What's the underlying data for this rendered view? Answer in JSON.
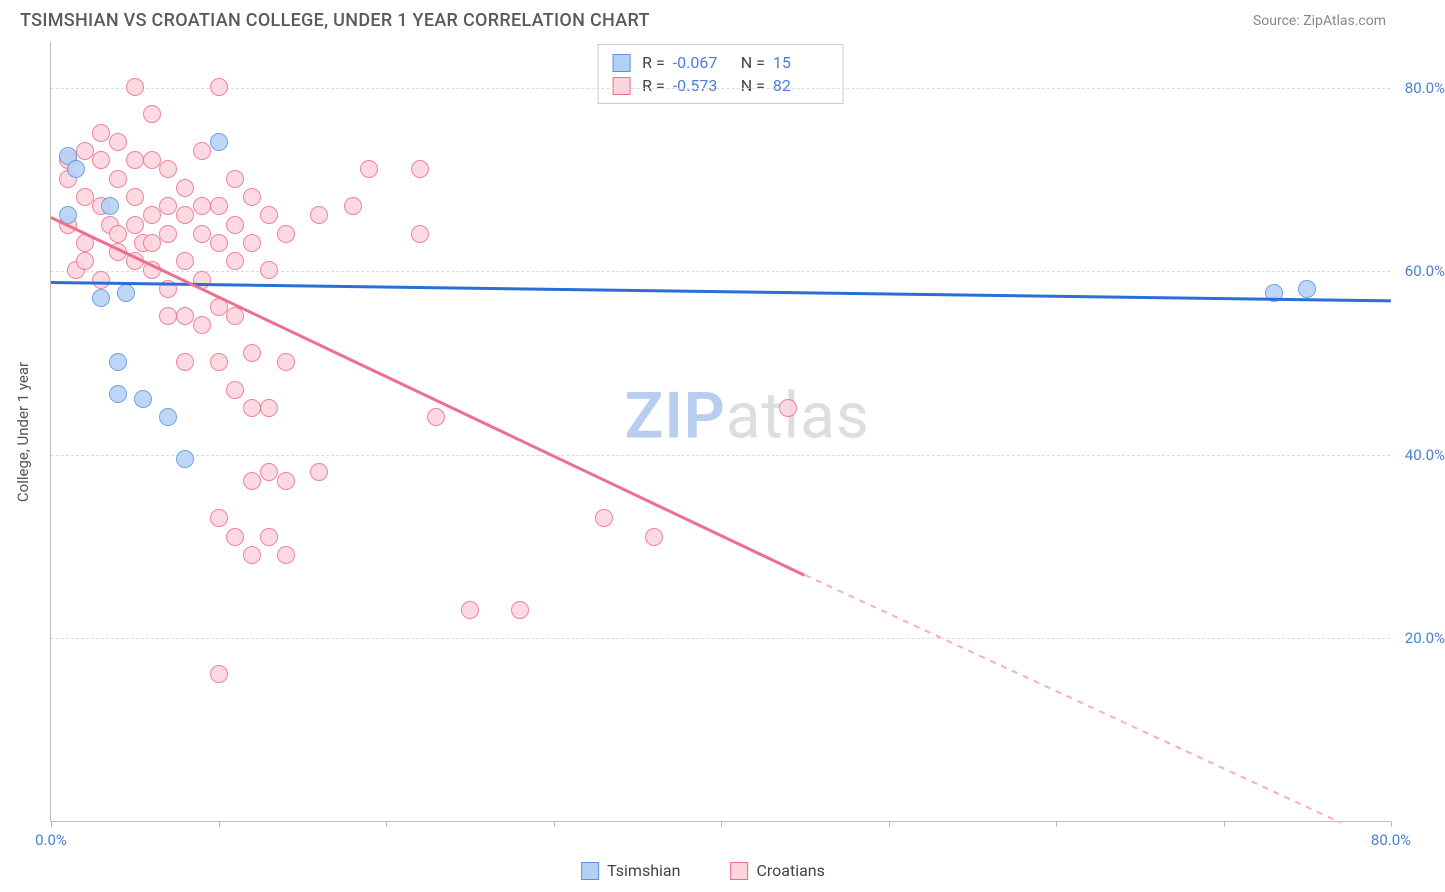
{
  "header": {
    "title": "TSIMSHIAN VS CROATIAN COLLEGE, UNDER 1 YEAR CORRELATION CHART",
    "source": "Source: ZipAtlas.com"
  },
  "chart": {
    "type": "scatter",
    "y_axis_label": "College, Under 1 year",
    "xlim": [
      0,
      80
    ],
    "ylim": [
      0,
      85
    ],
    "x_ticks": [
      0,
      10,
      20,
      30,
      40,
      50,
      60,
      70,
      80
    ],
    "x_tick_labels": {
      "0": "0.0%",
      "80": "80.0%"
    },
    "y_gridlines": [
      20,
      40,
      60,
      80
    ],
    "y_tick_labels": {
      "20": "20.0%",
      "40": "40.0%",
      "60": "60.0%",
      "80": "80.0%"
    },
    "grid_color": "#dcdcdc",
    "axis_color": "#bbbbbb",
    "background_color": "#ffffff",
    "point_radius": 9,
    "series": [
      {
        "name": "Tsimshian",
        "fill": "#b3d1f5",
        "stroke": "#5b93db",
        "r_value": "-0.067",
        "n_value": "15",
        "trend": {
          "x1": 0,
          "y1": 59,
          "x2": 80,
          "y2": 57,
          "color": "#2a6fd6",
          "dash": false
        },
        "points": [
          [
            1,
            66
          ],
          [
            1,
            72.5
          ],
          [
            1.5,
            71
          ],
          [
            3,
            57
          ],
          [
            3.5,
            67
          ],
          [
            4,
            46.5
          ],
          [
            4,
            50
          ],
          [
            4.5,
            57.5
          ],
          [
            5.5,
            46
          ],
          [
            7,
            44
          ],
          [
            8,
            39.5
          ],
          [
            10,
            74
          ],
          [
            73,
            57.5
          ],
          [
            75,
            58
          ]
        ]
      },
      {
        "name": "Croatians",
        "fill": "#fdd4de",
        "stroke": "#ec6f8e",
        "r_value": "-0.573",
        "n_value": "82",
        "trend": {
          "x1": 0,
          "y1": 66,
          "x2": 45,
          "y2": 27,
          "color": "#ec6f8e",
          "dash": false
        },
        "trend_ext": {
          "x1": 45,
          "y1": 27,
          "x2": 77,
          "y2": 0,
          "color": "#f7aebf",
          "dash": true
        },
        "points": [
          [
            1,
            72
          ],
          [
            1,
            70
          ],
          [
            1,
            65
          ],
          [
            1.5,
            60
          ],
          [
            2,
            73
          ],
          [
            2,
            68
          ],
          [
            2,
            63
          ],
          [
            2,
            61
          ],
          [
            3,
            75
          ],
          [
            3,
            72
          ],
          [
            3,
            67
          ],
          [
            3,
            59
          ],
          [
            3.5,
            65
          ],
          [
            4,
            74
          ],
          [
            4,
            70
          ],
          [
            4,
            64
          ],
          [
            4,
            62
          ],
          [
            5,
            80
          ],
          [
            5,
            72
          ],
          [
            5,
            68
          ],
          [
            5,
            65
          ],
          [
            5,
            61
          ],
          [
            5.5,
            63
          ],
          [
            6,
            77
          ],
          [
            6,
            72
          ],
          [
            6,
            66
          ],
          [
            6,
            63
          ],
          [
            6,
            60
          ],
          [
            7,
            71
          ],
          [
            7,
            67
          ],
          [
            7,
            64
          ],
          [
            7,
            58
          ],
          [
            7,
            55
          ],
          [
            8,
            69
          ],
          [
            8,
            66
          ],
          [
            8,
            61
          ],
          [
            8,
            55
          ],
          [
            8,
            50
          ],
          [
            9,
            73
          ],
          [
            9,
            67
          ],
          [
            9,
            64
          ],
          [
            9,
            59
          ],
          [
            9,
            54
          ],
          [
            10,
            80
          ],
          [
            10,
            67
          ],
          [
            10,
            63
          ],
          [
            10,
            56
          ],
          [
            10,
            50
          ],
          [
            10,
            33
          ],
          [
            10,
            16
          ],
          [
            11,
            70
          ],
          [
            11,
            65
          ],
          [
            11,
            61
          ],
          [
            11,
            55
          ],
          [
            11,
            47
          ],
          [
            11,
            31
          ],
          [
            12,
            68
          ],
          [
            12,
            63
          ],
          [
            12,
            51
          ],
          [
            12,
            45
          ],
          [
            12,
            37
          ],
          [
            12,
            29
          ],
          [
            13,
            66
          ],
          [
            13,
            60
          ],
          [
            13,
            45
          ],
          [
            13,
            38
          ],
          [
            13,
            31
          ],
          [
            14,
            64
          ],
          [
            14,
            50
          ],
          [
            14,
            37
          ],
          [
            14,
            29
          ],
          [
            16,
            66
          ],
          [
            16,
            38
          ],
          [
            18,
            67
          ],
          [
            19,
            71
          ],
          [
            22,
            64
          ],
          [
            22,
            71
          ],
          [
            23,
            44
          ],
          [
            25,
            23
          ],
          [
            28,
            23
          ],
          [
            33,
            33
          ],
          [
            36,
            31
          ],
          [
            44,
            45
          ]
        ]
      }
    ]
  },
  "watermark": {
    "part1": "ZIP",
    "part2": "atlas"
  },
  "bottom_legend": [
    {
      "label": "Tsimshian",
      "fill": "#b3d1f5",
      "stroke": "#5b93db"
    },
    {
      "label": "Croatians",
      "fill": "#fdd4de",
      "stroke": "#ec6f8e"
    }
  ]
}
